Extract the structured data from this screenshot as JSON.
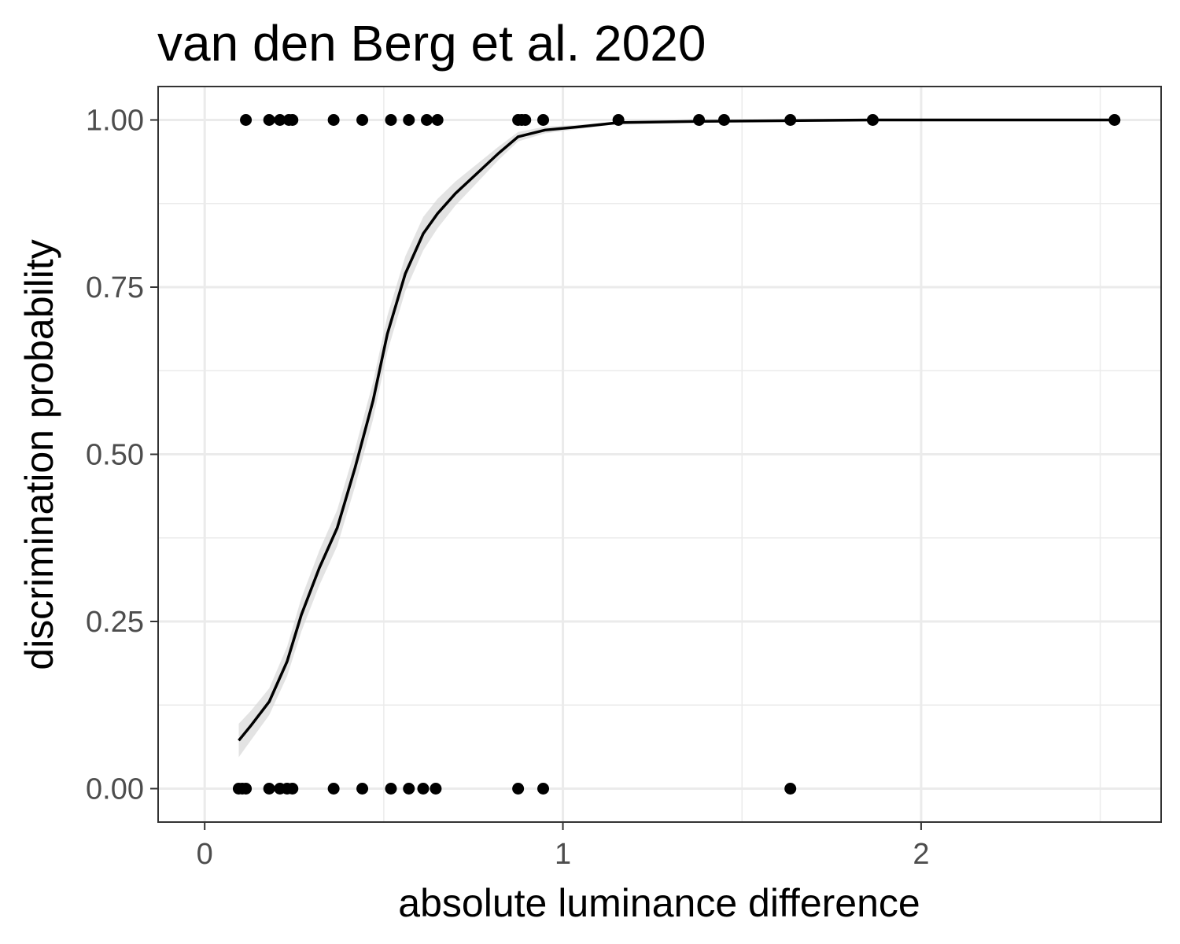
{
  "chart_data": {
    "type": "scatter",
    "title": "van den Berg et al. 2020",
    "xlabel": "absolute luminance difference",
    "ylabel": "discrimination probability",
    "xlim": [
      -0.13,
      2.67
    ],
    "ylim": [
      -0.05,
      1.05
    ],
    "x_ticks": [
      0,
      1,
      2
    ],
    "x_tick_labels": [
      "0",
      "1",
      "2"
    ],
    "y_ticks": [
      0,
      0.25,
      0.5,
      0.75,
      1.0
    ],
    "y_tick_labels": [
      "0.00",
      "0.25",
      "0.50",
      "0.75",
      "1.00"
    ],
    "grid": true,
    "points": {
      "y1_x": [
        0.115,
        0.18,
        0.21,
        0.235,
        0.245,
        0.36,
        0.44,
        0.52,
        0.57,
        0.62,
        0.65,
        0.875,
        0.885,
        0.895,
        0.945,
        1.155,
        1.38,
        1.45,
        1.635,
        1.865,
        2.54
      ],
      "y0_x": [
        0.095,
        0.105,
        0.115,
        0.18,
        0.21,
        0.23,
        0.245,
        0.36,
        0.44,
        0.52,
        0.57,
        0.61,
        0.645,
        0.875,
        0.945,
        1.635
      ]
    },
    "fit": {
      "x": [
        0.095,
        0.13,
        0.18,
        0.23,
        0.27,
        0.32,
        0.37,
        0.42,
        0.47,
        0.51,
        0.56,
        0.61,
        0.65,
        0.7,
        0.76,
        0.82,
        0.875,
        0.95,
        1.05,
        1.155,
        1.38,
        1.635,
        1.865,
        2.54
      ],
      "y": [
        0.072,
        0.095,
        0.13,
        0.19,
        0.26,
        0.33,
        0.39,
        0.48,
        0.58,
        0.68,
        0.77,
        0.83,
        0.86,
        0.89,
        0.92,
        0.95,
        0.975,
        0.985,
        0.99,
        0.996,
        0.998,
        0.999,
        1.0,
        1.0
      ],
      "ci_halfwidth": [
        0.025,
        0.022,
        0.02,
        0.022,
        0.025,
        0.026,
        0.027,
        0.028,
        0.028,
        0.027,
        0.026,
        0.025,
        0.022,
        0.018,
        0.014,
        0.01,
        0.007,
        0.005,
        0.003,
        0.002,
        0.001,
        0.001,
        0.0,
        0.0
      ]
    }
  }
}
